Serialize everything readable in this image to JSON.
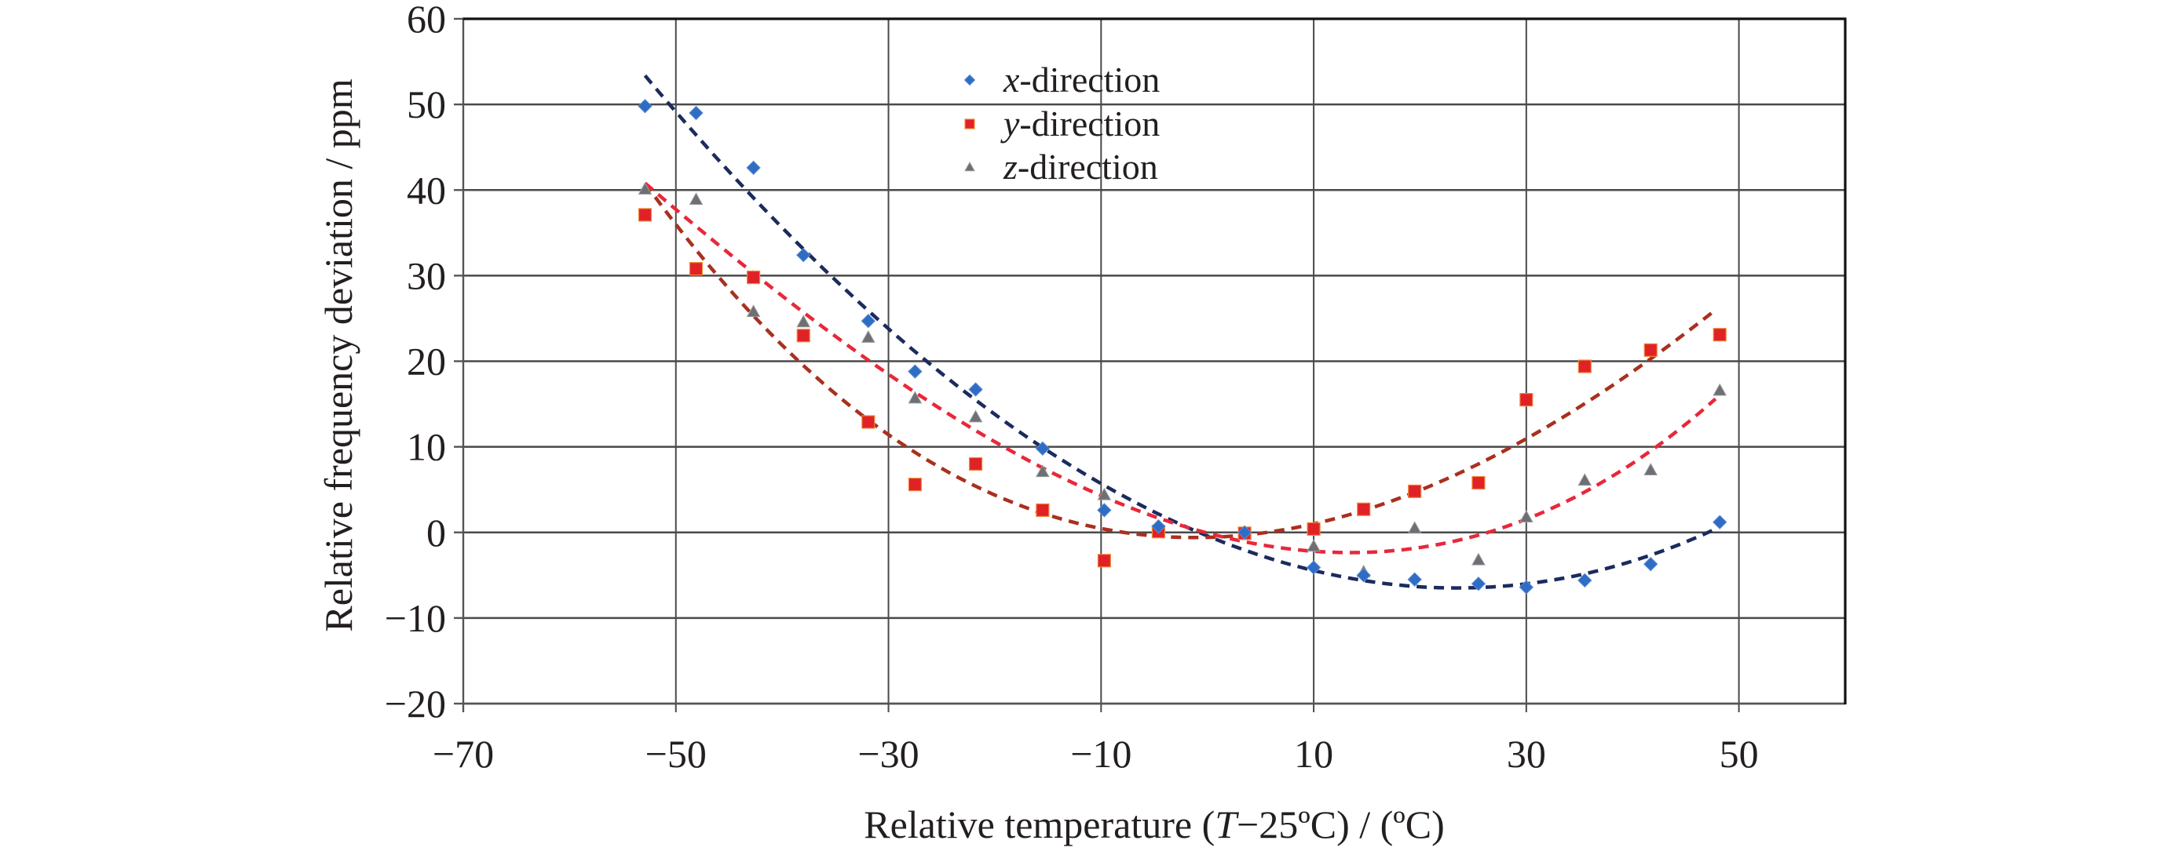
{
  "chart_data": {
    "type": "scatter",
    "title": "",
    "xlabel": "Relative temperature (T−25ºC) / (ºC)",
    "xlabel_parts": {
      "prefix": "Relative temperature (",
      "italic": "T",
      "suffix": "−25ºC) / (ºC)"
    },
    "ylabel": "Relative frequency deviation / ppm",
    "xlim": [
      -70,
      60
    ],
    "ylim": [
      -20,
      60
    ],
    "grid": true,
    "x_ticks": [
      -70,
      -50,
      -30,
      -10,
      10,
      30,
      50
    ],
    "x_tick_labels": [
      "−70",
      "−50",
      "−30",
      "−10",
      "10",
      "30",
      "50"
    ],
    "y_ticks": [
      -20,
      -10,
      0,
      10,
      20,
      30,
      40,
      50,
      60
    ],
    "y_tick_labels": [
      "−20",
      "−10",
      "0",
      "10",
      "20",
      "30",
      "40",
      "50",
      "60"
    ],
    "legend_position": "top-center",
    "x": [
      -52.9,
      -48.1,
      -42.7,
      -38.0,
      -31.9,
      -27.5,
      -21.8,
      -15.5,
      -9.7,
      -4.6,
      3.5,
      10.0,
      14.7,
      19.5,
      25.5,
      30.0,
      35.5,
      41.7,
      48.2
    ],
    "series": [
      {
        "name": "x-direction",
        "label_italic": "x",
        "label_rest": "-direction",
        "marker": "diamond",
        "color": "#2f6cc4",
        "values": [
          49.8,
          49.0,
          42.6,
          32.4,
          24.7,
          18.8,
          16.7,
          9.8,
          2.6,
          0.7,
          0.0,
          -4.1,
          -5.0,
          -5.5,
          -6.0,
          -6.4,
          -5.6,
          -3.7,
          1.2
        ],
        "trendline": {
          "type": "polynomial",
          "order": 3,
          "coefficients": [
            1.416e-05,
            0.010336,
            -0.50948,
            -0.4096
          ],
          "x_range": [
            -52.9,
            47.8
          ],
          "color": "#1b2b5e"
        }
      },
      {
        "name": "y-direction",
        "label_italic": "y",
        "label_rest": "-direction",
        "marker": "square",
        "color": "#e02226",
        "values": [
          37.1,
          30.8,
          29.8,
          23.0,
          12.9,
          5.6,
          8.0,
          2.6,
          -3.3,
          0.1,
          -0.1,
          0.4,
          2.7,
          4.8,
          5.8,
          15.5,
          19.4,
          21.3,
          23.1
        ],
        "trendline": {
          "type": "polynomial",
          "order": 3,
          "coefficients": [
            -4.381e-05,
            0.013065,
            0.03157,
            -0.5784
          ],
          "x_range": [
            -52.9,
            47.8
          ],
          "color": "#a9301f"
        }
      },
      {
        "name": "z-direction",
        "label_italic": "z",
        "label_rest": "-direction",
        "marker": "triangle",
        "color": "#6d6f73",
        "values": [
          40.1,
          38.9,
          25.8,
          24.6,
          22.8,
          15.7,
          13.5,
          7.1,
          4.4,
          0.0,
          -0.2,
          -1.6,
          -4.6,
          0.5,
          -3.2,
          1.8,
          6.1,
          7.3,
          16.6
        ],
        "trendline": {
          "type": "polynomial",
          "order": 3,
          "coefficients": [
            5.3746e-05,
            0.0112016,
            -0.33042,
            -0.0697
          ],
          "x_range": [
            -52.9,
            47.8
          ],
          "color": "#e8283a"
        }
      }
    ]
  }
}
